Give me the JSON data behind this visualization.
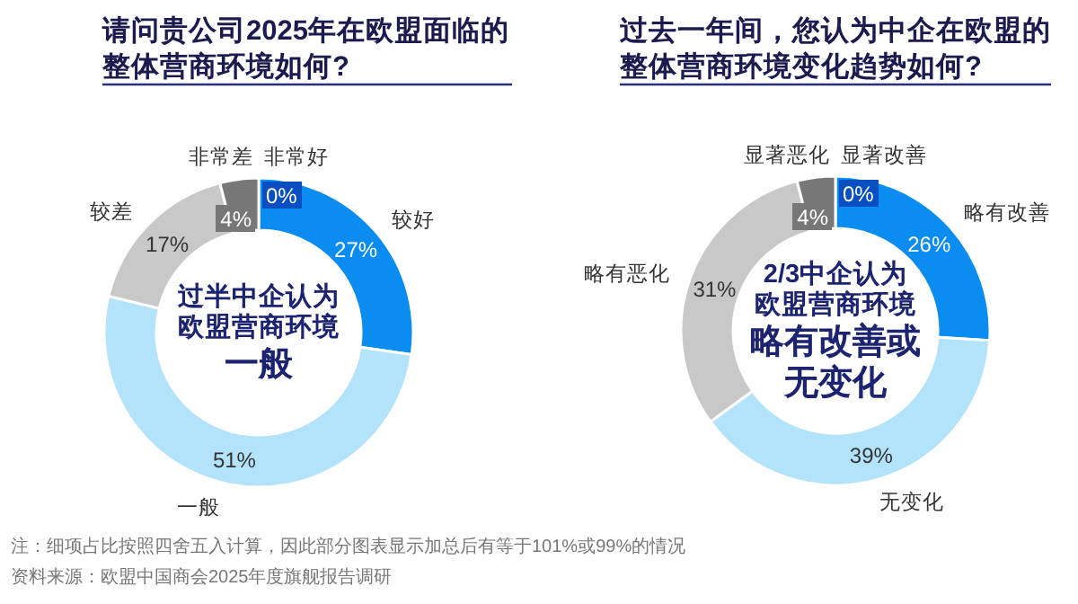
{
  "chart_data": [
    {
      "type": "donut",
      "title": "请问贵公司2025年在欧盟面临的整体营商环境如何?",
      "categories": [
        "非常好",
        "较好",
        "一般",
        "较差",
        "非常差"
      ],
      "values": [
        0,
        27,
        51,
        17,
        4
      ],
      "colors": [
        "#0a4fc2",
        "#0a8cf0",
        "#b3e3fb",
        "#c8c8c8",
        "#777777"
      ],
      "value_labels": [
        "0%",
        "27%",
        "51%",
        "17%",
        "4%"
      ],
      "annotations": [
        "过半中企认为",
        "欧盟营商环境",
        "一般"
      ]
    },
    {
      "type": "donut",
      "title": "过去一年间，您认为中企在欧盟的整体营商环境变化趋势如何?",
      "categories": [
        "显著改善",
        "略有改善",
        "无变化",
        "略有恶化",
        "显著恶化"
      ],
      "values": [
        0,
        26,
        39,
        31,
        4
      ],
      "colors": [
        "#0a4fc2",
        "#0a8cf0",
        "#b3e3fb",
        "#c8c8c8",
        "#777777"
      ],
      "value_labels": [
        "0%",
        "26%",
        "39%",
        "31%",
        "4%"
      ],
      "annotations": [
        "2/3中企认为",
        "欧盟营商环境",
        "略有改善或",
        "无变化"
      ]
    },
    {
      "type": "other",
      "annotations": [
        "注：细项占比按照四舍五入计算，因此部分图表显示加总后有等于101%或99%的情况",
        "资料来源：欧盟中国商会2025年度旗舰报告调研"
      ]
    }
  ]
}
